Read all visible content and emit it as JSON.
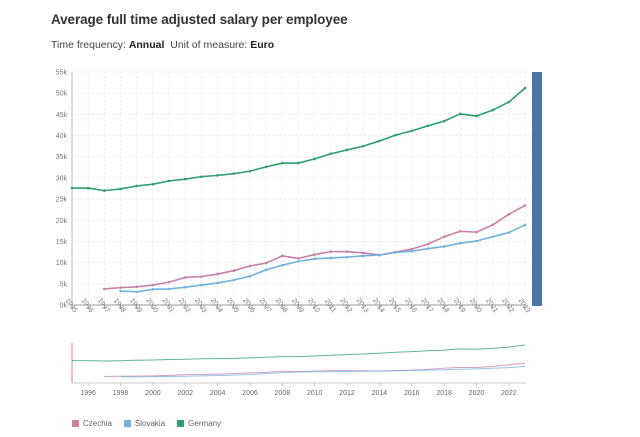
{
  "header": {
    "title": "Average full time adjusted salary per employee",
    "frequency_label": "Time frequency:",
    "frequency_value": "Annual",
    "unit_label": "Unit of measure:",
    "unit_value": "Euro"
  },
  "chart_data": {
    "type": "line",
    "title": "Average full time adjusted salary per employee",
    "xlabel": "",
    "ylabel": "",
    "x": [
      1995,
      1996,
      1997,
      1998,
      1999,
      2000,
      2001,
      2002,
      2003,
      2004,
      2005,
      2006,
      2007,
      2008,
      2009,
      2010,
      2011,
      2012,
      2013,
      2014,
      2015,
      2016,
      2017,
      2018,
      2019,
      2020,
      2021,
      2022,
      2023
    ],
    "ylim": [
      0,
      55000
    ],
    "yticks": [
      0,
      5000,
      10000,
      15000,
      20000,
      25000,
      30000,
      35000,
      40000,
      45000,
      50000,
      55000
    ],
    "ytick_labels": [
      "0k",
      "5k",
      "10k",
      "15k",
      "20k",
      "25k",
      "30k",
      "35k",
      "40k",
      "45k",
      "50k",
      "55k"
    ],
    "grid": true,
    "legend_position": "bottom-left",
    "series": [
      {
        "name": "Czechia",
        "color": "#c97fa8",
        "values": [
          null,
          null,
          3800,
          4100,
          4300,
          4700,
          5400,
          6500,
          6700,
          7300,
          8100,
          9200,
          9900,
          11600,
          11000,
          11900,
          12600,
          12600,
          12300,
          11800,
          12500,
          13200,
          14400,
          16100,
          17400,
          17200,
          18900,
          21400,
          23500
        ]
      },
      {
        "name": "Slovakia",
        "color": "#6fb3dd",
        "values": [
          null,
          null,
          null,
          3300,
          3100,
          3700,
          3800,
          4200,
          4700,
          5200,
          5900,
          6800,
          8300,
          9400,
          10300,
          10900,
          11100,
          11300,
          11600,
          11800,
          12400,
          12700,
          13300,
          13800,
          14600,
          15100,
          16100,
          17100,
          18900
        ]
      },
      {
        "name": "Germany",
        "color": "#2e9e72",
        "values": [
          27600,
          27600,
          27000,
          27400,
          28100,
          28500,
          29300,
          29700,
          30300,
          30600,
          31000,
          31600,
          32600,
          33500,
          33500,
          34500,
          35700,
          36600,
          37500,
          38700,
          40100,
          41100,
          42300,
          43400,
          45100,
          44600,
          46000,
          47900,
          51200
        ]
      }
    ],
    "navigator": {
      "tick_labels": [
        "1996",
        "1998",
        "2000",
        "2002",
        "2004",
        "2006",
        "2008",
        "2010",
        "2012",
        "2014",
        "2016",
        "2018",
        "2020",
        "2022"
      ]
    }
  },
  "scrollbar": {
    "color": "#4a76a8"
  },
  "legend": {
    "items": [
      "Czechia",
      "Slovakia",
      "Germany"
    ]
  }
}
